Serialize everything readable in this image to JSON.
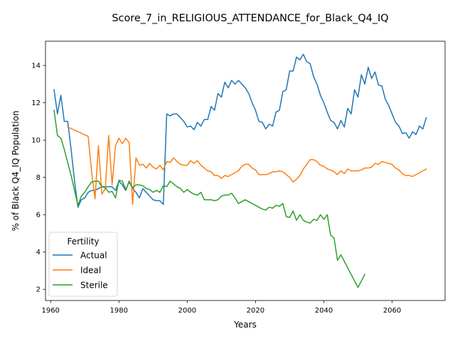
{
  "chart_data": {
    "type": "line",
    "title": "Score_7_in_RELIGIOUS_ATTENDANCE_for_Black_Q4_IQ",
    "xlabel": "Years",
    "ylabel": "% of Black Q4_IQ Population",
    "xlim": [
      1958.5,
      2075.5
    ],
    "ylim": [
      1.4,
      15.3
    ],
    "xticks": [
      1960,
      1980,
      2000,
      2020,
      2040,
      2060
    ],
    "yticks": [
      2,
      4,
      6,
      8,
      10,
      12,
      14
    ],
    "grid": false,
    "legend": {
      "title": "Fertility",
      "position": "lower-left"
    },
    "series": [
      {
        "name": "Actual",
        "color": "#1f77b4",
        "points": [
          [
            1961,
            12.7
          ],
          [
            1962,
            11.4
          ],
          [
            1963,
            12.4
          ],
          [
            1964,
            11.0
          ],
          [
            1965,
            11.0
          ],
          [
            1966,
            9.5
          ],
          [
            1967,
            7.8
          ],
          [
            1968,
            6.4
          ],
          [
            1969,
            6.8
          ],
          [
            1970,
            6.9
          ],
          [
            1971,
            7.2
          ],
          [
            1972,
            7.3
          ],
          [
            1973,
            7.3
          ],
          [
            1974,
            7.4
          ],
          [
            1975,
            7.5
          ],
          [
            1976,
            7.5
          ],
          [
            1977,
            7.5
          ],
          [
            1978,
            7.5
          ],
          [
            1979,
            7.3
          ],
          [
            1980,
            7.8
          ],
          [
            1981,
            7.6
          ],
          [
            1982,
            7.3
          ],
          [
            1983,
            7.8
          ],
          [
            1984,
            7.4
          ],
          [
            1985,
            7.2
          ],
          [
            1986,
            6.9
          ],
          [
            1987,
            7.4
          ],
          [
            1988,
            7.2
          ],
          [
            1989,
            7.0
          ],
          [
            1990,
            6.8
          ],
          [
            1991,
            6.75
          ],
          [
            1992,
            6.75
          ],
          [
            1993,
            6.55
          ],
          [
            1994,
            11.4
          ],
          [
            1995,
            11.3
          ],
          [
            1996,
            11.4
          ],
          [
            1997,
            11.4
          ],
          [
            1998,
            11.2
          ],
          [
            1999,
            11.0
          ],
          [
            2000,
            10.7
          ],
          [
            2001,
            10.75
          ],
          [
            2002,
            10.55
          ],
          [
            2003,
            10.95
          ],
          [
            2004,
            10.75
          ],
          [
            2005,
            11.1
          ],
          [
            2006,
            11.1
          ],
          [
            2007,
            11.8
          ],
          [
            2008,
            11.6
          ],
          [
            2009,
            12.5
          ],
          [
            2010,
            12.3
          ],
          [
            2011,
            13.1
          ],
          [
            2012,
            12.8
          ],
          [
            2013,
            13.2
          ],
          [
            2014,
            13.0
          ],
          [
            2015,
            13.2
          ],
          [
            2016,
            13.0
          ],
          [
            2017,
            12.8
          ],
          [
            2018,
            12.5
          ],
          [
            2019,
            12.0
          ],
          [
            2020,
            11.6
          ],
          [
            2021,
            11.0
          ],
          [
            2022,
            10.95
          ],
          [
            2023,
            10.6
          ],
          [
            2024,
            10.85
          ],
          [
            2025,
            10.75
          ],
          [
            2026,
            11.5
          ],
          [
            2027,
            11.6
          ],
          [
            2028,
            12.6
          ],
          [
            2029,
            12.7
          ],
          [
            2030,
            13.7
          ],
          [
            2031,
            13.7
          ],
          [
            2032,
            14.45
          ],
          [
            2033,
            14.3
          ],
          [
            2034,
            14.6
          ],
          [
            2035,
            14.2
          ],
          [
            2036,
            14.1
          ],
          [
            2037,
            13.4
          ],
          [
            2038,
            13.0
          ],
          [
            2039,
            12.4
          ],
          [
            2040,
            12.0
          ],
          [
            2041,
            11.5
          ],
          [
            2042,
            11.05
          ],
          [
            2043,
            10.95
          ],
          [
            2044,
            10.6
          ],
          [
            2045,
            11.05
          ],
          [
            2046,
            10.7
          ],
          [
            2047,
            11.7
          ],
          [
            2048,
            11.4
          ],
          [
            2049,
            12.7
          ],
          [
            2050,
            12.3
          ],
          [
            2051,
            13.5
          ],
          [
            2052,
            13.0
          ],
          [
            2053,
            13.9
          ],
          [
            2054,
            13.3
          ],
          [
            2055,
            13.65
          ],
          [
            2056,
            12.95
          ],
          [
            2057,
            12.9
          ],
          [
            2058,
            12.2
          ],
          [
            2059,
            11.85
          ],
          [
            2060,
            11.4
          ],
          [
            2061,
            10.95
          ],
          [
            2062,
            10.75
          ],
          [
            2063,
            10.35
          ],
          [
            2064,
            10.4
          ],
          [
            2065,
            10.1
          ],
          [
            2066,
            10.45
          ],
          [
            2067,
            10.3
          ],
          [
            2068,
            10.75
          ],
          [
            2069,
            10.6
          ],
          [
            2070,
            11.2
          ]
        ]
      },
      {
        "name": "Ideal",
        "color": "#ff7f0e",
        "points": [
          [
            1965,
            10.7
          ],
          [
            1971,
            10.2
          ],
          [
            1972,
            8.3
          ],
          [
            1973,
            6.85
          ],
          [
            1974,
            9.7
          ],
          [
            1975,
            7.1
          ],
          [
            1976,
            7.4
          ],
          [
            1977,
            10.25
          ],
          [
            1978,
            7.6
          ],
          [
            1979,
            9.7
          ],
          [
            1980,
            10.1
          ],
          [
            1981,
            9.8
          ],
          [
            1982,
            10.1
          ],
          [
            1983,
            9.85
          ],
          [
            1984,
            6.55
          ],
          [
            1985,
            9.05
          ],
          [
            1986,
            8.65
          ],
          [
            1987,
            8.7
          ],
          [
            1988,
            8.5
          ],
          [
            1989,
            8.75
          ],
          [
            1990,
            8.55
          ],
          [
            1991,
            8.45
          ],
          [
            1992,
            8.65
          ],
          [
            1993,
            8.4
          ],
          [
            1994,
            8.85
          ],
          [
            1995,
            8.8
          ],
          [
            1996,
            9.05
          ],
          [
            1997,
            8.85
          ],
          [
            1998,
            8.7
          ],
          [
            1999,
            8.65
          ],
          [
            2000,
            8.65
          ],
          [
            2001,
            8.9
          ],
          [
            2002,
            8.75
          ],
          [
            2003,
            8.9
          ],
          [
            2004,
            8.65
          ],
          [
            2005,
            8.5
          ],
          [
            2006,
            8.35
          ],
          [
            2007,
            8.3
          ],
          [
            2008,
            8.1
          ],
          [
            2009,
            8.1
          ],
          [
            2010,
            7.95
          ],
          [
            2011,
            8.1
          ],
          [
            2012,
            8.05
          ],
          [
            2013,
            8.15
          ],
          [
            2014,
            8.25
          ],
          [
            2015,
            8.35
          ],
          [
            2016,
            8.6
          ],
          [
            2017,
            8.7
          ],
          [
            2018,
            8.7
          ],
          [
            2019,
            8.5
          ],
          [
            2020,
            8.4
          ],
          [
            2021,
            8.15
          ],
          [
            2022,
            8.15
          ],
          [
            2023,
            8.15
          ],
          [
            2024,
            8.2
          ],
          [
            2025,
            8.3
          ],
          [
            2026,
            8.3
          ],
          [
            2027,
            8.35
          ],
          [
            2028,
            8.3
          ],
          [
            2029,
            8.15
          ],
          [
            2030,
            8.0
          ],
          [
            2031,
            7.75
          ],
          [
            2032,
            7.9
          ],
          [
            2033,
            8.1
          ],
          [
            2034,
            8.45
          ],
          [
            2035,
            8.7
          ],
          [
            2036,
            8.95
          ],
          [
            2037,
            8.95
          ],
          [
            2038,
            8.85
          ],
          [
            2039,
            8.65
          ],
          [
            2040,
            8.6
          ],
          [
            2041,
            8.45
          ],
          [
            2042,
            8.4
          ],
          [
            2043,
            8.3
          ],
          [
            2044,
            8.15
          ],
          [
            2045,
            8.35
          ],
          [
            2046,
            8.2
          ],
          [
            2047,
            8.45
          ],
          [
            2048,
            8.35
          ],
          [
            2049,
            8.35
          ],
          [
            2050,
            8.35
          ],
          [
            2051,
            8.4
          ],
          [
            2052,
            8.5
          ],
          [
            2053,
            8.5
          ],
          [
            2054,
            8.55
          ],
          [
            2055,
            8.75
          ],
          [
            2056,
            8.7
          ],
          [
            2057,
            8.85
          ],
          [
            2058,
            8.8
          ],
          [
            2059,
            8.75
          ],
          [
            2060,
            8.7
          ],
          [
            2061,
            8.5
          ],
          [
            2062,
            8.4
          ],
          [
            2063,
            8.2
          ],
          [
            2064,
            8.1
          ],
          [
            2065,
            8.1
          ],
          [
            2066,
            8.05
          ],
          [
            2067,
            8.15
          ],
          [
            2068,
            8.25
          ],
          [
            2069,
            8.35
          ],
          [
            2070,
            8.45
          ]
        ]
      },
      {
        "name": "Sterile",
        "color": "#2ca02c",
        "points": [
          [
            1961,
            11.6
          ],
          [
            1962,
            10.25
          ],
          [
            1963,
            10.1
          ],
          [
            1964,
            9.5
          ],
          [
            1965,
            8.8
          ],
          [
            1966,
            8.1
          ],
          [
            1967,
            7.3
          ],
          [
            1968,
            6.5
          ],
          [
            1969,
            7.0
          ],
          [
            1970,
            7.2
          ],
          [
            1971,
            7.5
          ],
          [
            1972,
            7.75
          ],
          [
            1973,
            7.8
          ],
          [
            1974,
            7.8
          ],
          [
            1975,
            7.5
          ],
          [
            1976,
            7.45
          ],
          [
            1977,
            7.2
          ],
          [
            1978,
            7.25
          ],
          [
            1979,
            6.9
          ],
          [
            1980,
            7.85
          ],
          [
            1981,
            7.8
          ],
          [
            1982,
            7.35
          ],
          [
            1983,
            7.75
          ],
          [
            1984,
            7.45
          ],
          [
            1985,
            7.6
          ],
          [
            1986,
            7.6
          ],
          [
            1987,
            7.55
          ],
          [
            1988,
            7.4
          ],
          [
            1989,
            7.35
          ],
          [
            1990,
            7.2
          ],
          [
            1991,
            7.3
          ],
          [
            1992,
            7.2
          ],
          [
            1993,
            7.55
          ],
          [
            1994,
            7.5
          ],
          [
            1995,
            7.8
          ],
          [
            1996,
            7.65
          ],
          [
            1997,
            7.5
          ],
          [
            1998,
            7.4
          ],
          [
            1999,
            7.2
          ],
          [
            2000,
            7.35
          ],
          [
            2001,
            7.2
          ],
          [
            2002,
            7.1
          ],
          [
            2003,
            7.05
          ],
          [
            2004,
            7.2
          ],
          [
            2005,
            6.8
          ],
          [
            2006,
            6.8
          ],
          [
            2007,
            6.8
          ],
          [
            2008,
            6.75
          ],
          [
            2009,
            6.8
          ],
          [
            2010,
            7.0
          ],
          [
            2011,
            7.05
          ],
          [
            2012,
            7.05
          ],
          [
            2013,
            7.15
          ],
          [
            2014,
            6.9
          ],
          [
            2015,
            6.6
          ],
          [
            2016,
            6.7
          ],
          [
            2017,
            6.8
          ],
          [
            2018,
            6.7
          ],
          [
            2019,
            6.6
          ],
          [
            2020,
            6.5
          ],
          [
            2021,
            6.4
          ],
          [
            2022,
            6.3
          ],
          [
            2023,
            6.25
          ],
          [
            2024,
            6.4
          ],
          [
            2025,
            6.35
          ],
          [
            2026,
            6.5
          ],
          [
            2027,
            6.45
          ],
          [
            2028,
            6.6
          ],
          [
            2029,
            5.9
          ],
          [
            2030,
            5.85
          ],
          [
            2031,
            6.2
          ],
          [
            2032,
            5.7
          ],
          [
            2033,
            6.0
          ],
          [
            2034,
            5.7
          ],
          [
            2035,
            5.6
          ],
          [
            2036,
            5.55
          ],
          [
            2037,
            5.75
          ],
          [
            2038,
            5.7
          ],
          [
            2039,
            6.0
          ],
          [
            2040,
            5.75
          ],
          [
            2041,
            6.0
          ],
          [
            2042,
            4.9
          ],
          [
            2043,
            4.75
          ],
          [
            2044,
            3.55
          ],
          [
            2045,
            3.85
          ],
          [
            2046,
            3.5
          ],
          [
            2047,
            3.15
          ],
          [
            2048,
            2.8
          ],
          [
            2049,
            2.45
          ],
          [
            2050,
            2.1
          ],
          [
            2051,
            2.45
          ],
          [
            2052,
            2.8
          ]
        ]
      }
    ]
  }
}
